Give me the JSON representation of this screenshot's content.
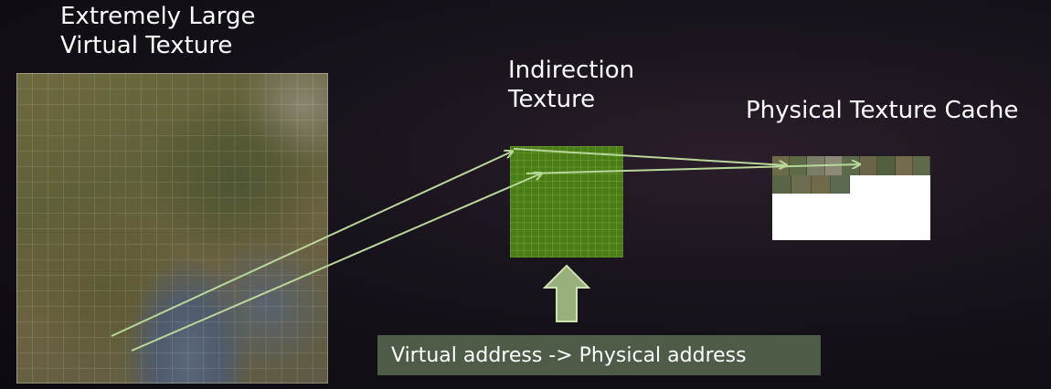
{
  "virtual_texture": {
    "title_line1": "Extremely Large",
    "title_line2": "Virtual Texture"
  },
  "indirection_texture": {
    "title_line1": "Indirection",
    "title_line2": "Texture",
    "color": "#4a7d16"
  },
  "physical_cache": {
    "title": "Physical Texture Cache"
  },
  "address_label": {
    "text": "Virtual address -> Physical address"
  },
  "colors": {
    "arrow": "#b9d79a",
    "label_box": "#4d5b47",
    "up_arrow_fill": "#9ab07c",
    "background": "#17121b"
  }
}
